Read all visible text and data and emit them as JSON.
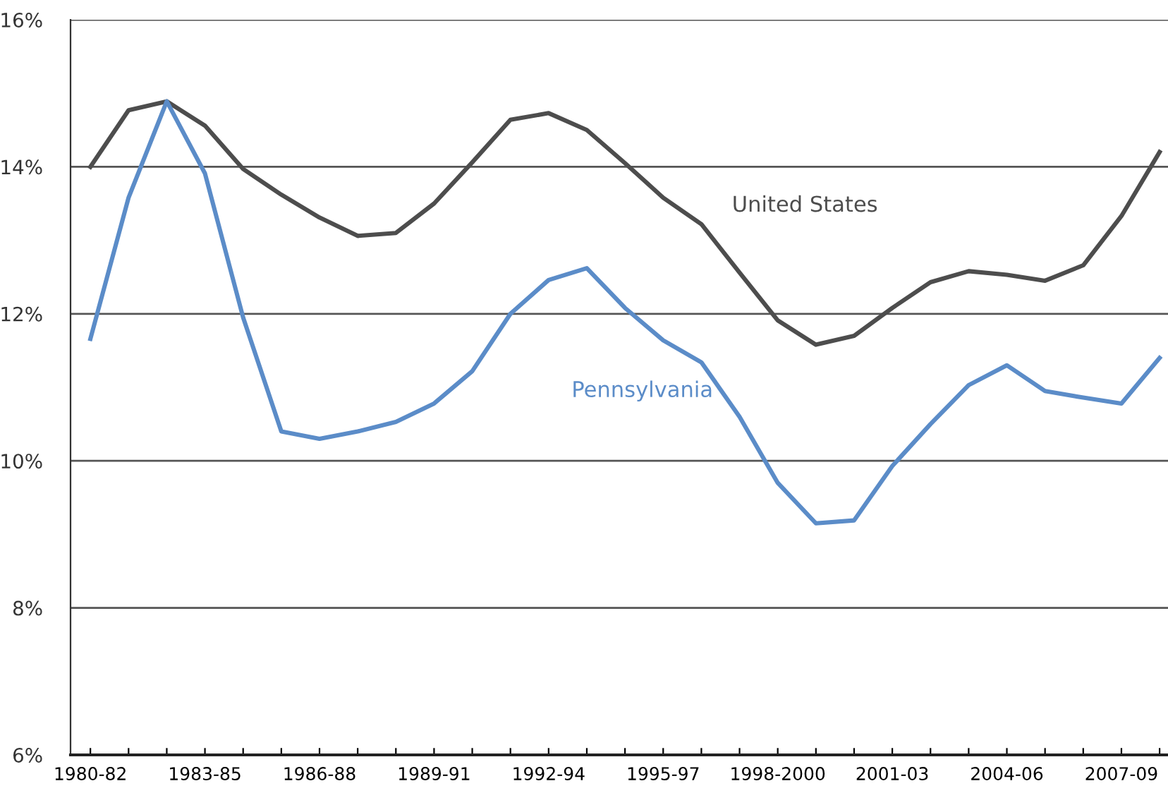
{
  "chart_data": {
    "type": "line",
    "categories": [
      "1980-82",
      null,
      null,
      "1983-85",
      null,
      null,
      "1986-88",
      null,
      null,
      "1989-91",
      null,
      null,
      "1992-94",
      null,
      null,
      "1995-97",
      null,
      null,
      "1998-2000",
      null,
      null,
      "2001-03",
      null,
      null,
      "2004-06",
      null,
      null,
      "2007-09",
      null
    ],
    "series": [
      {
        "name": "United States",
        "color": "#4d4d4d",
        "values": [
          14.0,
          14.77,
          14.89,
          14.56,
          13.97,
          13.62,
          13.31,
          13.06,
          13.1,
          13.5,
          14.06,
          14.64,
          14.73,
          14.5,
          14.05,
          13.58,
          13.22,
          12.56,
          11.91,
          11.58,
          11.7,
          12.08,
          12.43,
          12.58,
          12.53,
          12.45,
          12.66,
          13.33,
          14.2
        ]
      },
      {
        "name": "Pennsylvania",
        "color": "#5b8cc8",
        "values": [
          11.66,
          13.58,
          14.89,
          13.91,
          11.95,
          10.4,
          10.3,
          10.4,
          10.53,
          10.78,
          11.22,
          12.0,
          12.46,
          12.62,
          12.08,
          11.64,
          11.34,
          10.6,
          9.7,
          9.15,
          9.19,
          9.93,
          10.5,
          11.03,
          11.3,
          10.95,
          10.86,
          10.78,
          11.4
        ]
      }
    ],
    "ylim": [
      6,
      16
    ],
    "yticks": [
      {
        "value": 6,
        "label": "6%"
      },
      {
        "value": 8,
        "label": "8%"
      },
      {
        "value": 10,
        "label": "10%"
      },
      {
        "value": 12,
        "label": "12%"
      },
      {
        "value": 14,
        "label": "14%"
      },
      {
        "value": 16,
        "label": "16%"
      }
    ],
    "grid": "y",
    "legend": false,
    "marker": "none",
    "line_style": "solid"
  }
}
